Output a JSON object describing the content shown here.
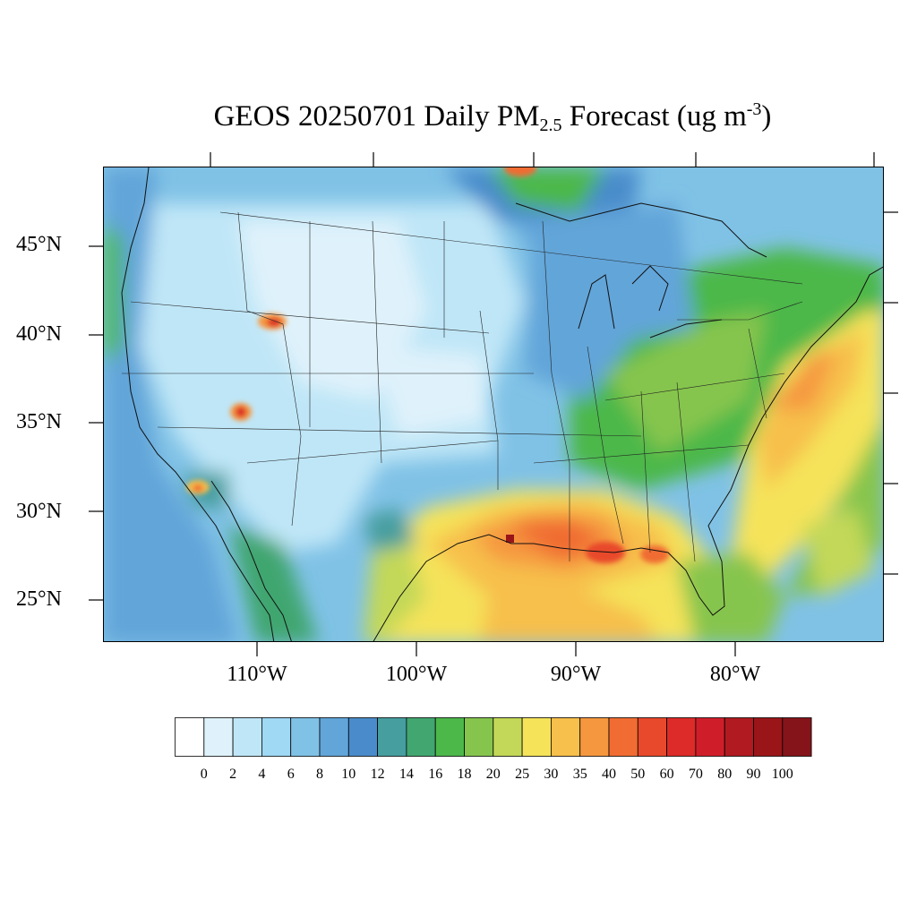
{
  "title": {
    "prefix": "GEOS 20250701 Daily PM",
    "subscript": "2.5",
    "middle": " Forecast (ug m",
    "superscript": "-3",
    "suffix": ")"
  },
  "lat_labels": [
    "45°N",
    "40°N",
    "35°N",
    "30°N",
    "25°N"
  ],
  "lon_labels": [
    "110°W",
    "100°W",
    "90°W",
    "80°W"
  ],
  "colorbar": {
    "labels": [
      "0",
      "2",
      "4",
      "6",
      "8",
      "10",
      "12",
      "14",
      "16",
      "18",
      "20",
      "25",
      "30",
      "35",
      "40",
      "50",
      "60",
      "70",
      "80",
      "90",
      "100"
    ],
    "colors": [
      "#ffffff",
      "#dff2fb",
      "#bfe6f7",
      "#9fd9f4",
      "#80c2e6",
      "#62a5d9",
      "#4a8ccb",
      "#469e9f",
      "#41a670",
      "#4cb84a",
      "#86c54d",
      "#c3d858",
      "#f5e35a",
      "#f7bf4b",
      "#f5973f",
      "#f06c32",
      "#e8482b",
      "#dc2b28",
      "#cf1e2a",
      "#b01a20",
      "#9a1518",
      "#84141a"
    ]
  },
  "map": {
    "extent": {
      "lon_min": -119,
      "lon_max": -70,
      "lat_min": 22.6,
      "lat_max": 49.2
    },
    "hotspots": [
      {
        "lon": -112,
        "lat": 41.3,
        "value": 70
      },
      {
        "lon": -113,
        "lat": 35.6,
        "value": 60
      },
      {
        "lon": -114.5,
        "lat": 32.1,
        "value": 50
      },
      {
        "lon": -94.3,
        "lat": 29.3,
        "value": 100
      },
      {
        "lon": -92.0,
        "lat": 29.0,
        "value": 50
      },
      {
        "lon": -89.5,
        "lat": 28.6,
        "value": 50
      },
      {
        "lon": -84.8,
        "lat": 28.8,
        "value": 40
      },
      {
        "lon": -94.2,
        "lat": 49.1,
        "value": 70
      }
    ]
  }
}
